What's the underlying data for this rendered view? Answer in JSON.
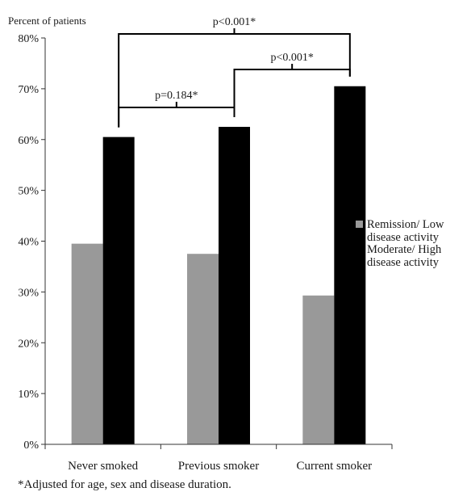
{
  "chart_data": {
    "type": "bar",
    "ylabel": "Percent of patients",
    "categories": [
      "Never smoked",
      "Previous smoker",
      "Current smoker"
    ],
    "series": [
      {
        "name": "Remission/ Low disease activity",
        "legend_lines": [
          "Remission/ Low",
          "disease activity"
        ],
        "color": "#999999",
        "values": [
          39.5,
          37.5,
          29.3
        ]
      },
      {
        "name": "Moderate/ High disease activity",
        "legend_lines": [
          "Moderate/ High",
          "disease activity"
        ],
        "color": "#000000",
        "values": [
          60.5,
          62.5,
          70.5
        ]
      }
    ],
    "ylim": [
      0,
      80
    ],
    "yticks": [
      0,
      10,
      20,
      30,
      40,
      50,
      60,
      70,
      80
    ],
    "ytick_suffix": "%",
    "legend_position": "right",
    "grid": false,
    "comparisons": [
      {
        "from": 0,
        "to": 1,
        "label": "p=0.184*",
        "level": 0
      },
      {
        "from": 1,
        "to": 2,
        "label": "p<0.001*",
        "level": 1
      },
      {
        "from": 0,
        "to": 2,
        "label": "p<0.001*",
        "level": 2
      }
    ],
    "footnote": "*Adjusted for age, sex and disease duration."
  }
}
